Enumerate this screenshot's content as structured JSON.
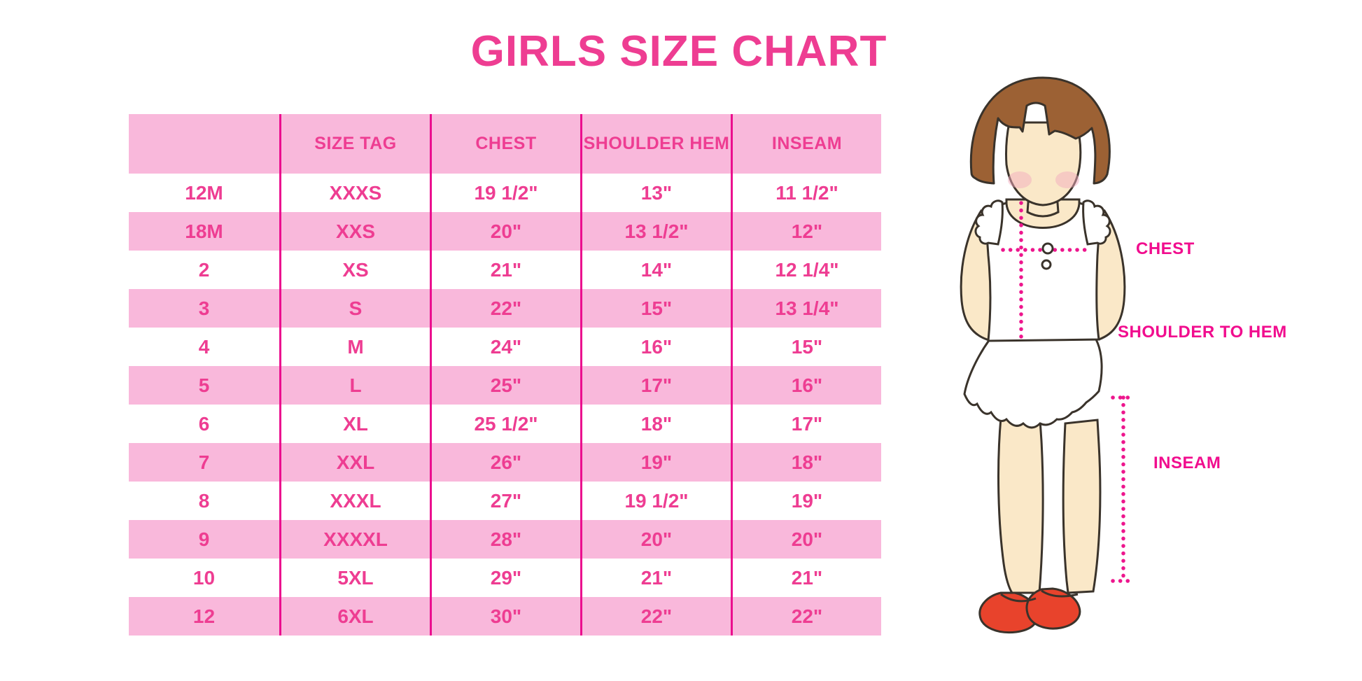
{
  "title": "GIRLS SIZE CHART",
  "chart_data": {
    "type": "table",
    "title": "GIRLS SIZE CHART",
    "columns": [
      "",
      "SIZE TAG",
      "CHEST",
      "SHOULDER HEM",
      "INSEAM"
    ],
    "rows": [
      [
        "12M",
        "XXXS",
        "19 1/2\"",
        "13\"",
        "11 1/2\""
      ],
      [
        "18M",
        "XXS",
        "20\"",
        "13 1/2\"",
        "12\""
      ],
      [
        "2",
        "XS",
        "21\"",
        "14\"",
        "12 1/4\""
      ],
      [
        "3",
        "S",
        "22\"",
        "15\"",
        "13 1/4\""
      ],
      [
        "4",
        "M",
        "24\"",
        "16\"",
        "15\""
      ],
      [
        "5",
        "L",
        "25\"",
        "17\"",
        "16\""
      ],
      [
        "6",
        "XL",
        "25 1/2\"",
        "18\"",
        "17\""
      ],
      [
        "7",
        "XXL",
        "26\"",
        "19\"",
        "18\""
      ],
      [
        "8",
        "XXXL",
        "27\"",
        "19 1/2\"",
        "19\""
      ],
      [
        "9",
        "XXXXL",
        "28\"",
        "20\"",
        "20\""
      ],
      [
        "10",
        "5XL",
        "29\"",
        "21\"",
        "21\""
      ],
      [
        "12",
        "6XL",
        "30\"",
        "22\"",
        "22\""
      ]
    ],
    "row_striping": "header pink, then alternating white/pink starting white",
    "grid": "vertical magenta column separators only, no horizontal lines"
  },
  "figure": {
    "labels": {
      "chest": "CHEST",
      "shoulder_to_hem": "SHOULDER TO HEM",
      "inseam": "INSEAM"
    }
  },
  "colors": {
    "accent_pink": "#EE3D92",
    "row_pink": "#F9B8DB",
    "line_magenta": "#EB0E8E",
    "dotted_magenta": "#ED168D",
    "label_magenta": "#F10D8E",
    "hair_brown": "#9C6134",
    "skin": "#FAE8C8",
    "shoe_red": "#E8432C",
    "outline_dark": "#3A332B"
  }
}
